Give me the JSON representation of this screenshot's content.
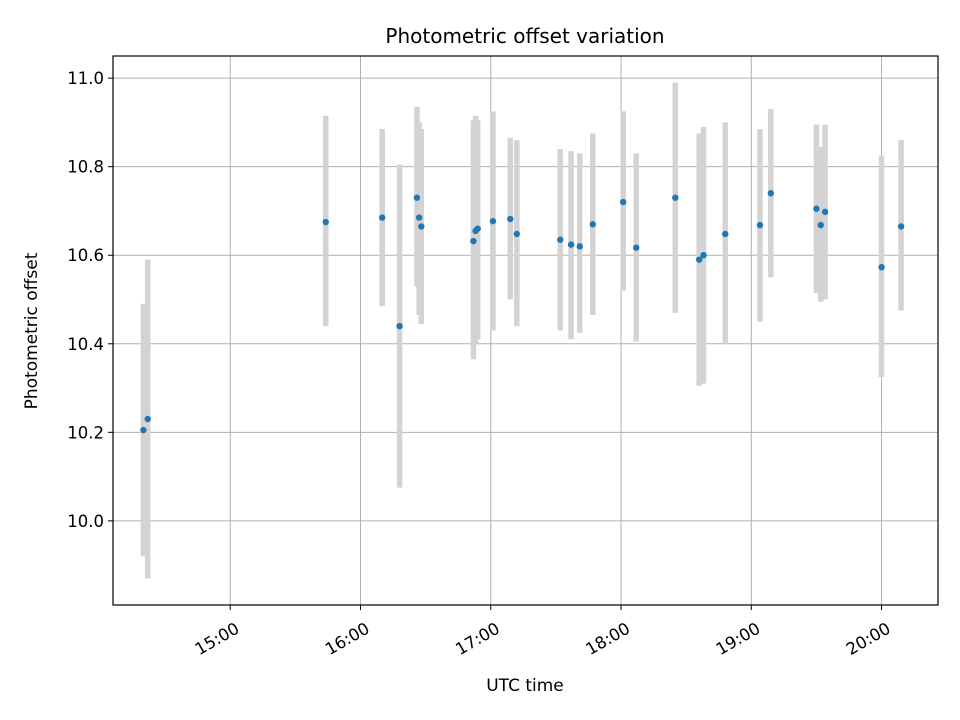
{
  "chart_data": {
    "type": "scatter",
    "title": "Photometric offset variation",
    "xlabel": "UTC time",
    "ylabel": "Photometric offset",
    "xlim": [
      "14:06",
      "20:26"
    ],
    "ylim": [
      9.81,
      11.05
    ],
    "x_ticks": [
      "15:00",
      "16:00",
      "17:00",
      "18:00",
      "19:00",
      "20:00"
    ],
    "y_ticks": [
      "10.0",
      "10.2",
      "10.4",
      "10.6",
      "10.8",
      "11.0"
    ],
    "grid": true,
    "marker_color": "#1f77b4",
    "errorbar_color": "#d3d3d3",
    "points": [
      {
        "x": "14:20",
        "y": 10.205,
        "lo": 9.92,
        "hi": 10.49
      },
      {
        "x": "14:22",
        "y": 10.23,
        "lo": 9.87,
        "hi": 10.59
      },
      {
        "x": "15:44",
        "y": 10.675,
        "lo": 10.44,
        "hi": 10.915
      },
      {
        "x": "16:10",
        "y": 10.685,
        "lo": 10.485,
        "hi": 10.885
      },
      {
        "x": "16:18",
        "y": 10.44,
        "lo": 10.075,
        "hi": 10.805
      },
      {
        "x": "16:26",
        "y": 10.73,
        "lo": 10.53,
        "hi": 10.935
      },
      {
        "x": "16:27",
        "y": 10.685,
        "lo": 10.465,
        "hi": 10.9
      },
      {
        "x": "16:28",
        "y": 10.665,
        "lo": 10.445,
        "hi": 10.885
      },
      {
        "x": "16:52",
        "y": 10.632,
        "lo": 10.365,
        "hi": 10.905
      },
      {
        "x": "16:53",
        "y": 10.655,
        "lo": 10.4,
        "hi": 10.915
      },
      {
        "x": "16:54",
        "y": 10.66,
        "lo": 10.41,
        "hi": 10.905
      },
      {
        "x": "17:01",
        "y": 10.677,
        "lo": 10.43,
        "hi": 10.925
      },
      {
        "x": "17:09",
        "y": 10.682,
        "lo": 10.5,
        "hi": 10.865
      },
      {
        "x": "17:12",
        "y": 10.648,
        "lo": 10.44,
        "hi": 10.86
      },
      {
        "x": "17:32",
        "y": 10.635,
        "lo": 10.43,
        "hi": 10.84
      },
      {
        "x": "17:37",
        "y": 10.624,
        "lo": 10.41,
        "hi": 10.835
      },
      {
        "x": "17:41",
        "y": 10.62,
        "lo": 10.425,
        "hi": 10.83
      },
      {
        "x": "17:47",
        "y": 10.67,
        "lo": 10.465,
        "hi": 10.875
      },
      {
        "x": "18:01",
        "y": 10.72,
        "lo": 10.52,
        "hi": 10.925
      },
      {
        "x": "18:07",
        "y": 10.617,
        "lo": 10.405,
        "hi": 10.83
      },
      {
        "x": "18:25",
        "y": 10.73,
        "lo": 10.47,
        "hi": 10.99
      },
      {
        "x": "18:36",
        "y": 10.59,
        "lo": 10.305,
        "hi": 10.875
      },
      {
        "x": "18:38",
        "y": 10.6,
        "lo": 10.31,
        "hi": 10.89
      },
      {
        "x": "18:48",
        "y": 10.648,
        "lo": 10.4,
        "hi": 10.9
      },
      {
        "x": "19:04",
        "y": 10.668,
        "lo": 10.45,
        "hi": 10.885
      },
      {
        "x": "19:09",
        "y": 10.74,
        "lo": 10.55,
        "hi": 10.93
      },
      {
        "x": "19:30",
        "y": 10.705,
        "lo": 10.515,
        "hi": 10.895
      },
      {
        "x": "19:32",
        "y": 10.668,
        "lo": 10.495,
        "hi": 10.845
      },
      {
        "x": "19:34",
        "y": 10.698,
        "lo": 10.5,
        "hi": 10.895
      },
      {
        "x": "20:00",
        "y": 10.573,
        "lo": 10.325,
        "hi": 10.825
      },
      {
        "x": "20:09",
        "y": 10.665,
        "lo": 10.475,
        "hi": 10.86
      }
    ]
  }
}
